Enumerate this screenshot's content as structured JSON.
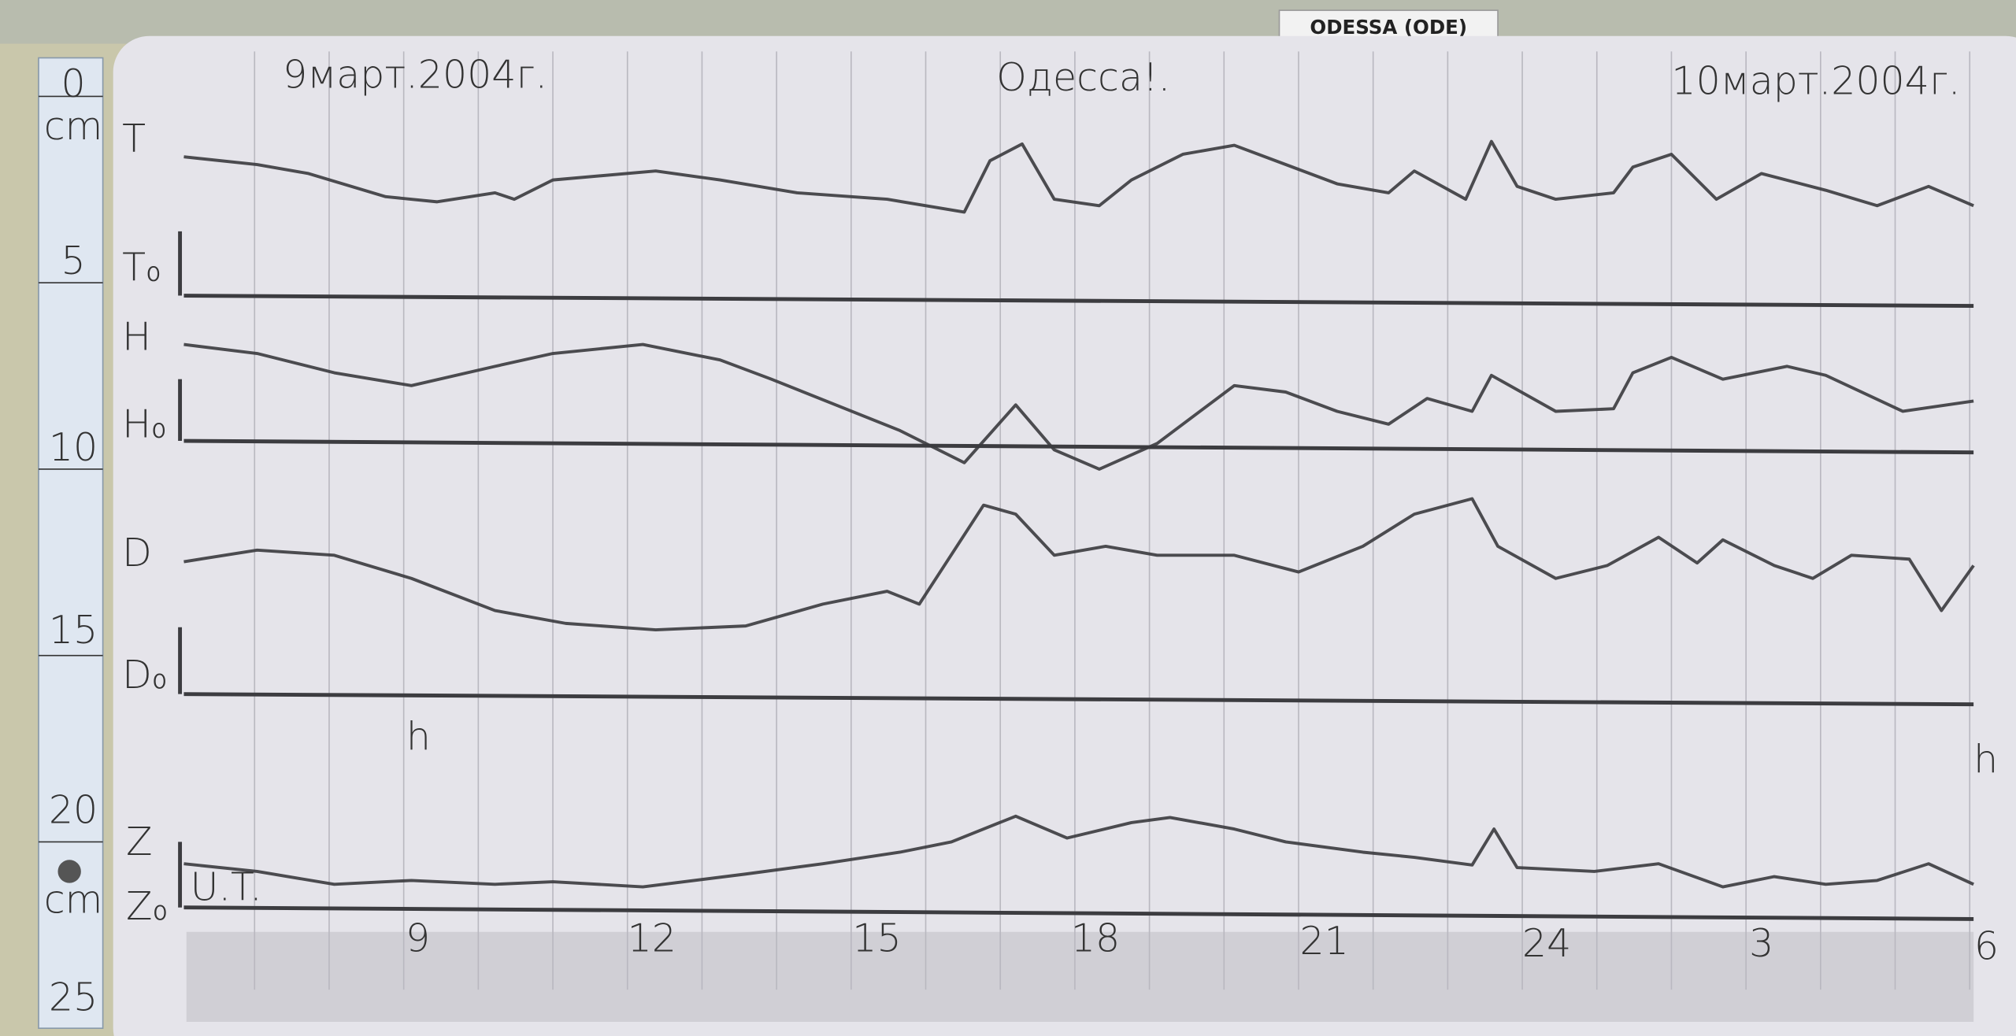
{
  "label": "ODESSA (ODE)",
  "header": {
    "left": "9март.2004г.",
    "center": "Одесса!.",
    "right": "10март.2004г."
  },
  "ruler": {
    "ticks": [
      "0",
      "5",
      "10",
      "15",
      "20",
      "25"
    ],
    "units": [
      "cm",
      "cm"
    ]
  },
  "traces": [
    "T",
    "T₀",
    "H",
    "H₀",
    "D",
    "D₀",
    "Z",
    "Z₀"
  ],
  "markers": [
    "h",
    "h"
  ],
  "time_label": "U.T.",
  "hours": [
    "9",
    "12",
    "15",
    "18",
    "21",
    "24",
    "3",
    "6"
  ]
}
